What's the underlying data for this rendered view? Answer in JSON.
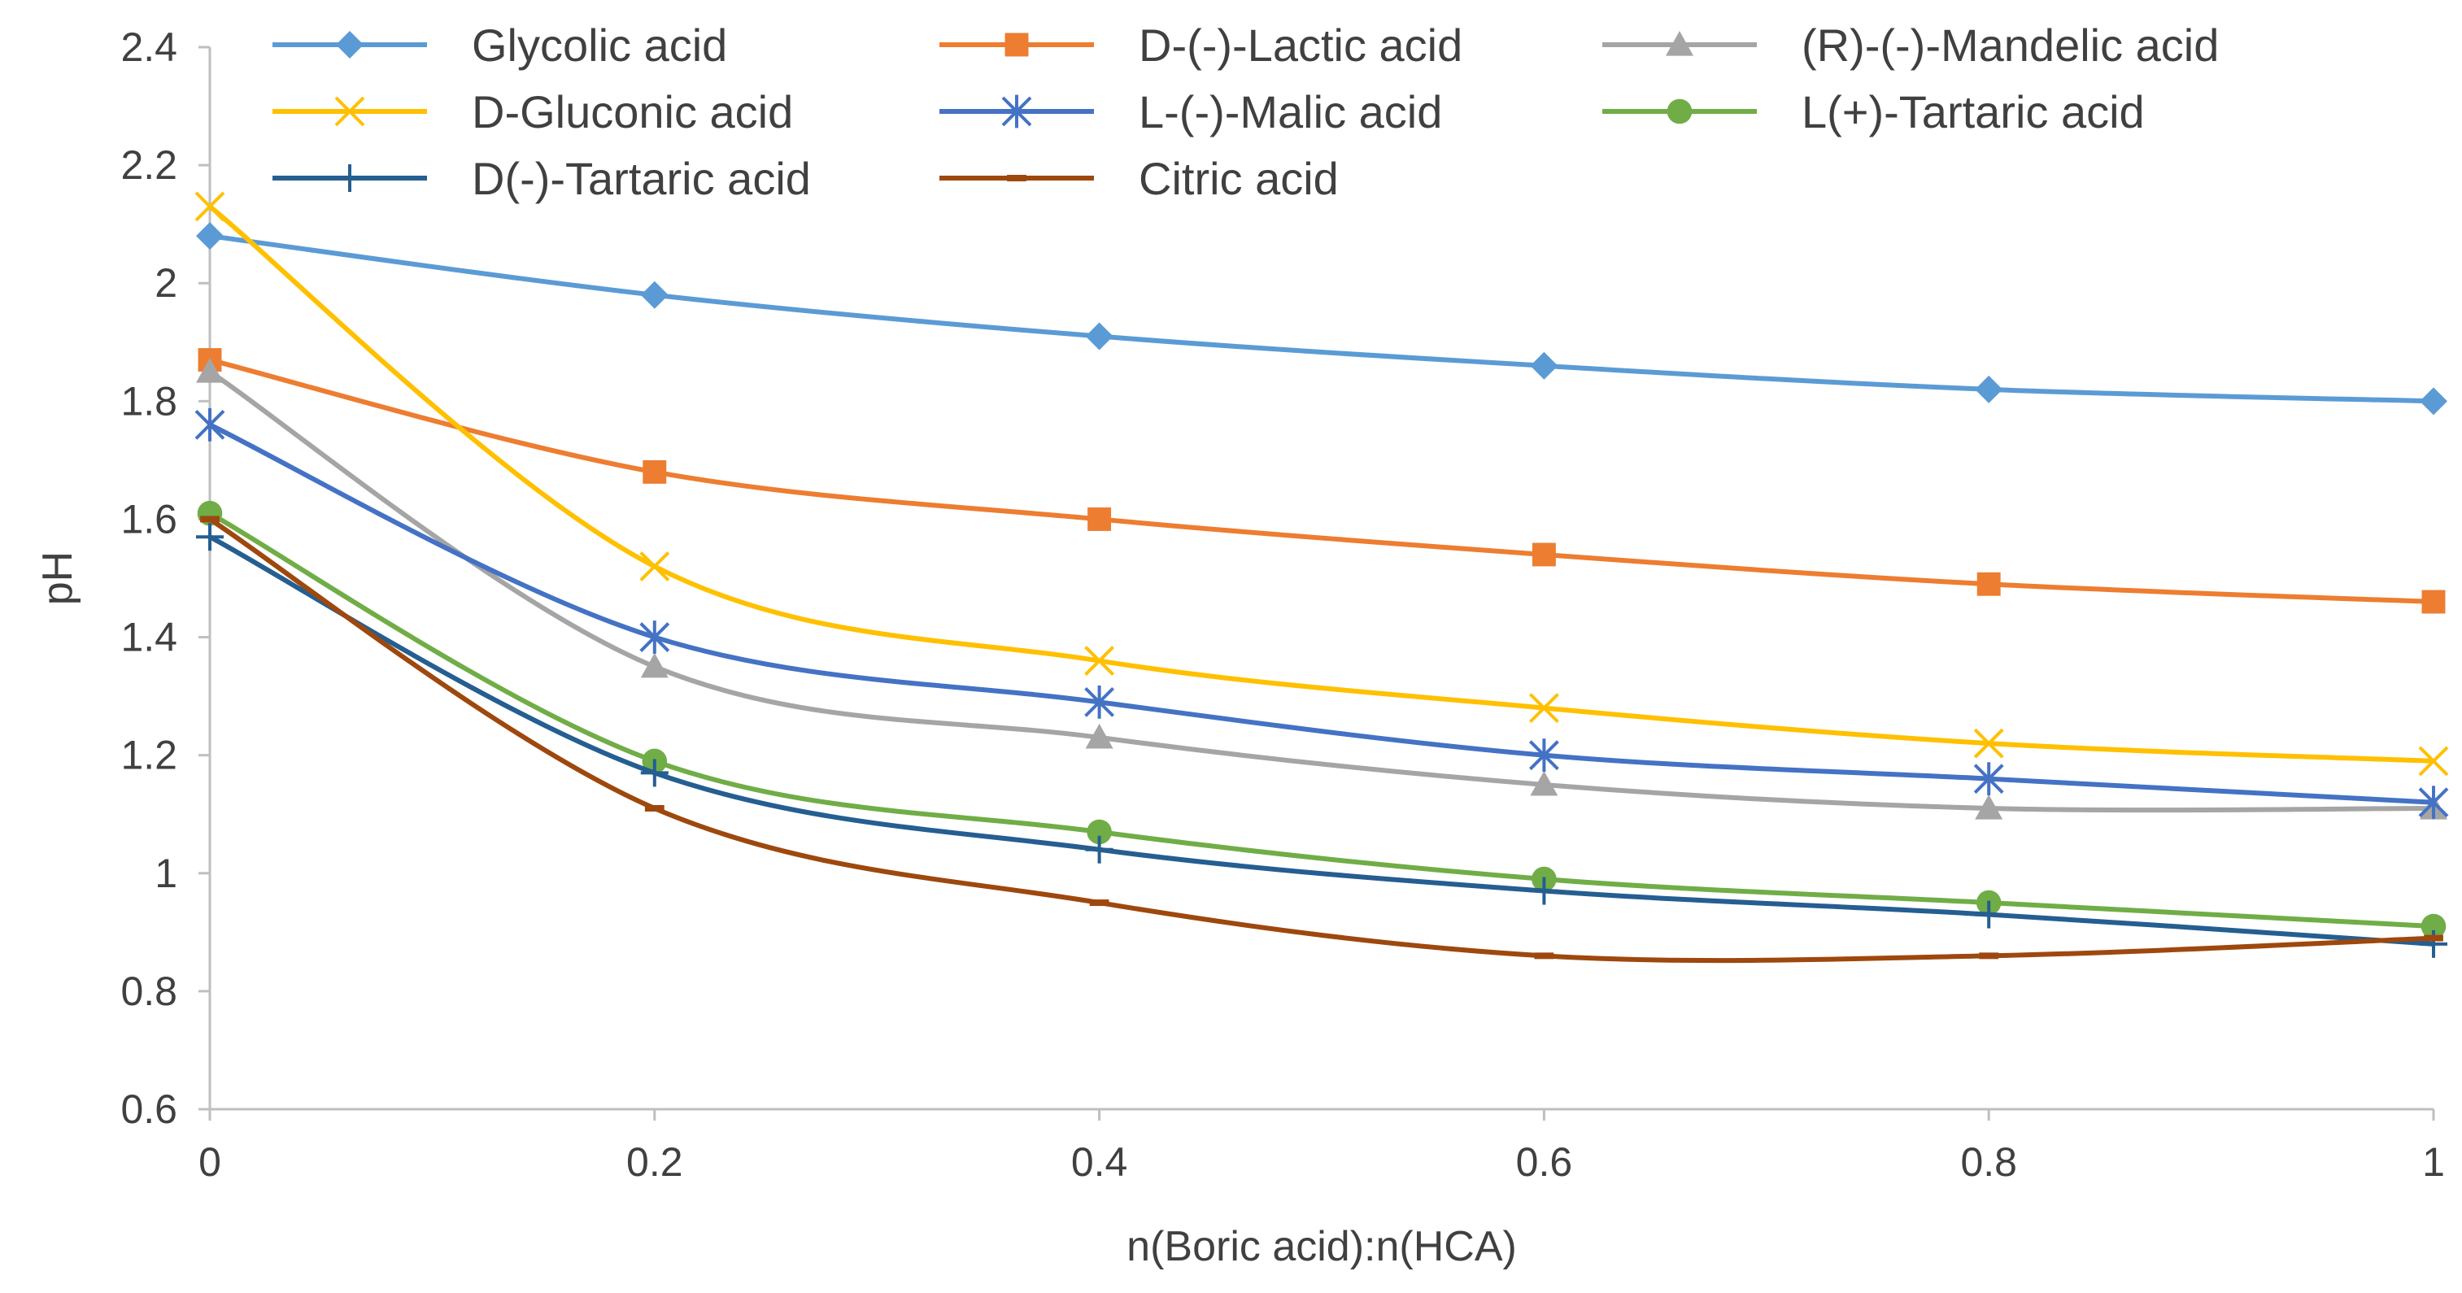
{
  "chart_data": {
    "type": "line",
    "title": "",
    "xlabel": "n(Boric acid):n(HCA)",
    "ylabel": "pH",
    "x": [
      0,
      0.2,
      0.4,
      0.6,
      0.8,
      1
    ],
    "xlim": [
      0,
      1
    ],
    "ylim": [
      0.6,
      2.4
    ],
    "x_ticks": [
      "0",
      "0.2",
      "0.4",
      "0.6",
      "0.8",
      "1"
    ],
    "y_ticks": [
      "0.6",
      "0.8",
      "1",
      "1.2",
      "1.4",
      "1.6",
      "1.8",
      "2",
      "2.2",
      "2.4"
    ],
    "grid": false,
    "legend_position": "top",
    "series": [
      {
        "name": "Glycolic acid",
        "color": "#5B9BD5",
        "marker": "diamond",
        "values": [
          2.08,
          1.98,
          1.91,
          1.86,
          1.82,
          1.8
        ]
      },
      {
        "name": "D-(-)-Lactic acid",
        "color": "#ED7D31",
        "marker": "square",
        "values": [
          1.87,
          1.68,
          1.6,
          1.54,
          1.49,
          1.46
        ]
      },
      {
        "name": "(R)-(-)-Mandelic acid",
        "color": "#A5A5A5",
        "marker": "triangle",
        "values": [
          1.85,
          1.35,
          1.23,
          1.15,
          1.11,
          1.11
        ]
      },
      {
        "name": "D-Gluconic acid",
        "color": "#FFC000",
        "marker": "x",
        "values": [
          2.13,
          1.52,
          1.36,
          1.28,
          1.22,
          1.19
        ]
      },
      {
        "name": "L-(-)-Malic acid",
        "color": "#4472C4",
        "marker": "star",
        "values": [
          1.76,
          1.4,
          1.29,
          1.2,
          1.16,
          1.12
        ]
      },
      {
        "name": "L(+)-Tartaric acid",
        "color": "#70AD47",
        "marker": "circle",
        "values": [
          1.61,
          1.19,
          1.07,
          0.99,
          0.95,
          0.91
        ]
      },
      {
        "name": "D(-)-Tartaric acid",
        "color": "#255E91",
        "marker": "plus",
        "values": [
          1.57,
          1.17,
          1.04,
          0.97,
          0.93,
          0.88
        ]
      },
      {
        "name": "Citric acid",
        "color": "#9E480E",
        "marker": "dash",
        "values": [
          1.6,
          1.11,
          0.95,
          0.86,
          0.86,
          0.89
        ]
      }
    ]
  }
}
